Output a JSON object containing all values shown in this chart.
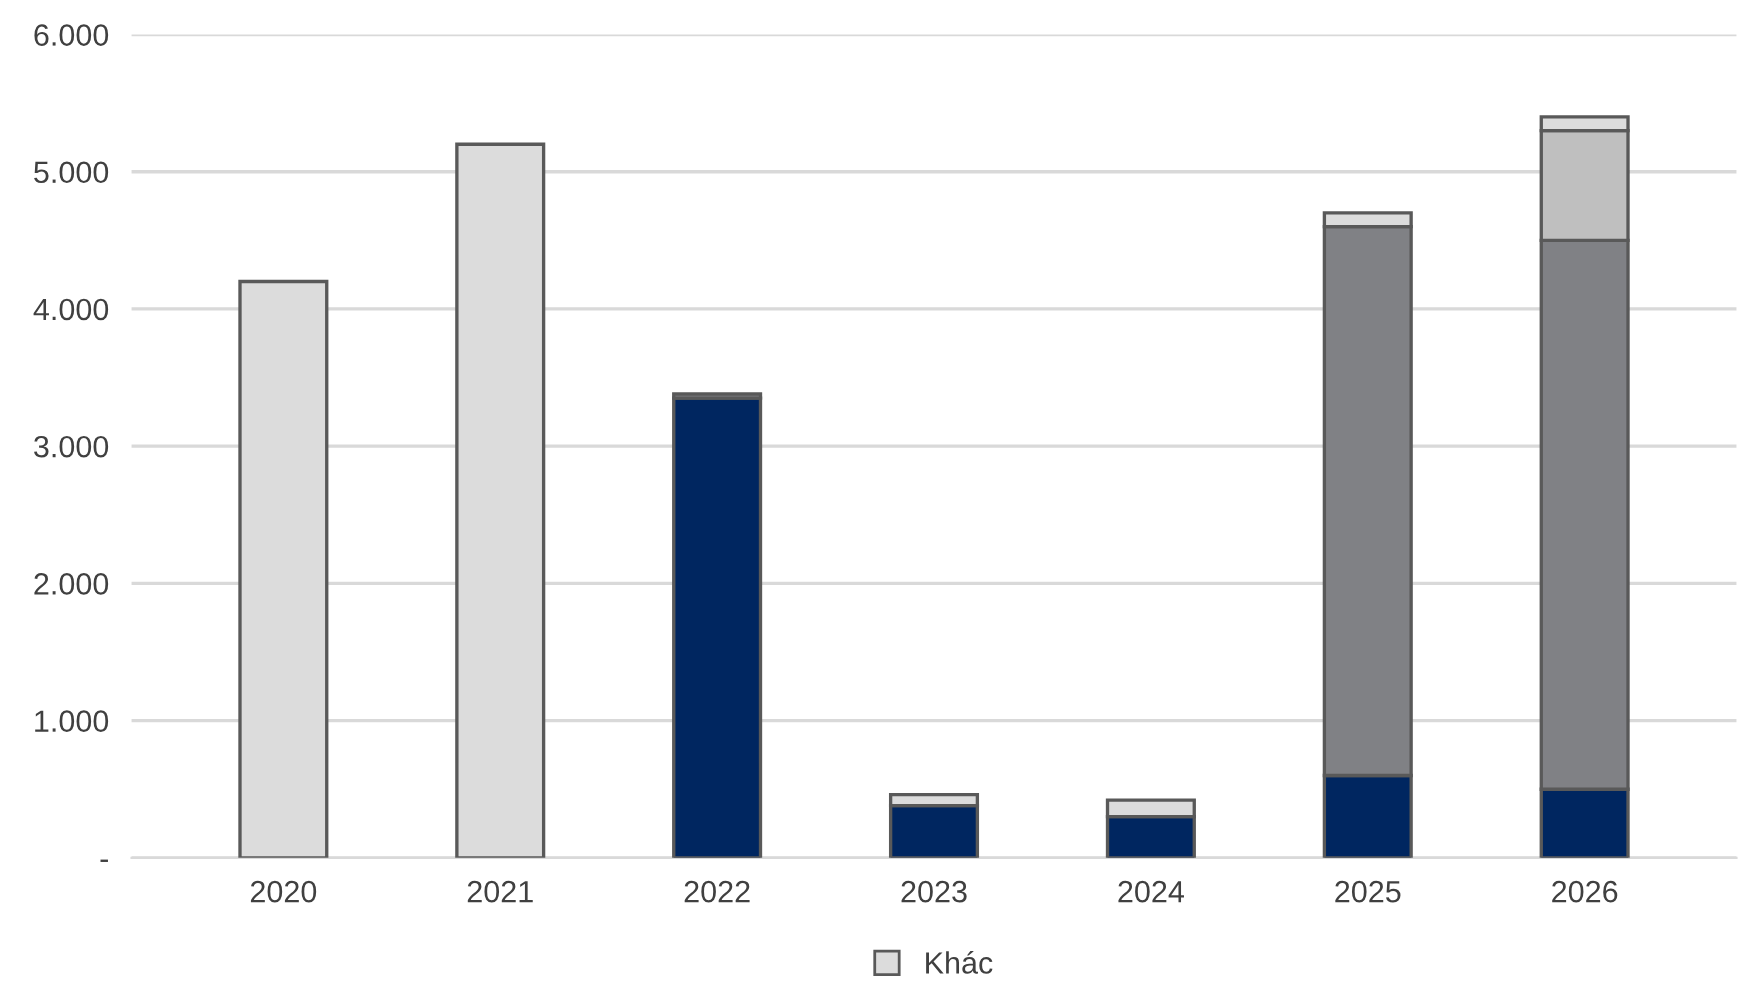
{
  "chart_data": {
    "type": "bar",
    "stacked": true,
    "categories": [
      "2020",
      "2021",
      "2022",
      "2023",
      "2024",
      "2025",
      "2026"
    ],
    "series": [
      {
        "color": "#002660",
        "values": [
          0,
          0,
          3350,
          380,
          300,
          600,
          500
        ]
      },
      {
        "color": "#808185",
        "values": [
          0,
          0,
          30,
          0,
          0,
          4000,
          4000
        ]
      },
      {
        "color": "#bfbfbf",
        "values": [
          0,
          0,
          0,
          0,
          0,
          0,
          800
        ]
      },
      {
        "name": "Khác",
        "color": "#dcdcdc",
        "values": [
          4200,
          5200,
          0,
          80,
          120,
          100,
          100
        ]
      }
    ],
    "ylim": [
      0,
      6000
    ],
    "yticks": [
      {
        "value": 0,
        "label": "-"
      },
      {
        "value": 1000,
        "label": "1.000"
      },
      {
        "value": 2000,
        "label": "2.000"
      },
      {
        "value": 3000,
        "label": "3.000"
      },
      {
        "value": 4000,
        "label": "4.000"
      },
      {
        "value": 5000,
        "label": "5.000"
      },
      {
        "value": 6000,
        "label": "6.000"
      }
    ],
    "grid": "y",
    "legend": "bottom"
  }
}
